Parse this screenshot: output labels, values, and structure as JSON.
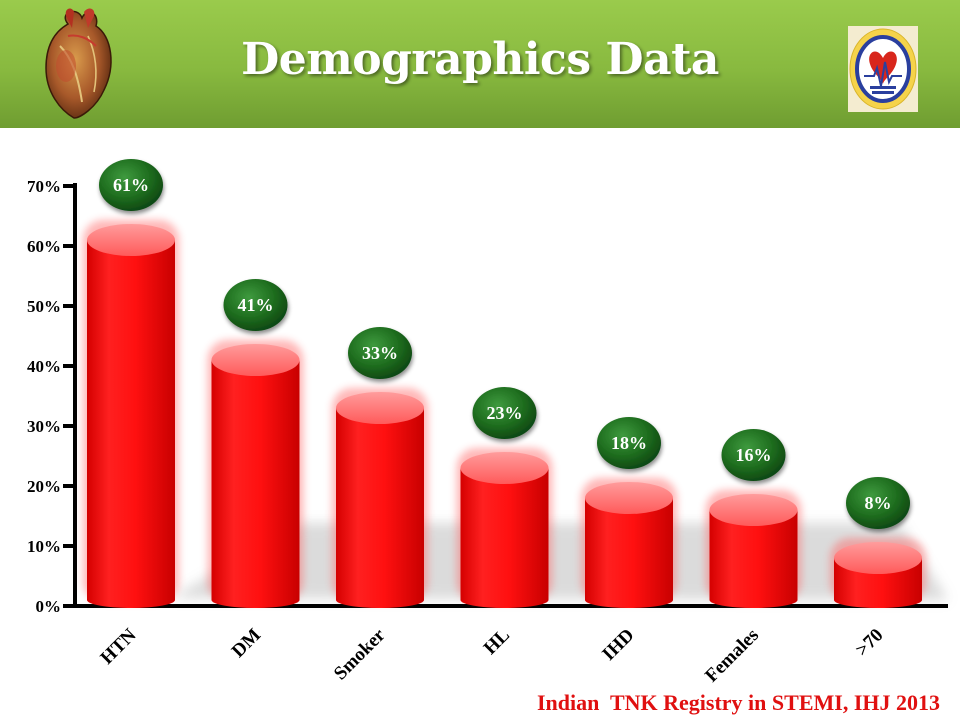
{
  "slide": {
    "title": "Demographics Data",
    "citation": "Indian  TNK Registry in STEMI, IHJ 2013"
  },
  "logos": {
    "left": "heart-icon",
    "right": "cardiological-society-of-india-seal",
    "seal_text": "CARDIOLOGICAL SOCIETY OF INDIA"
  },
  "colors": {
    "header": "#88b93f",
    "bar": "#ff0000",
    "badge": "#1e6b1e",
    "citation": "#e01010"
  },
  "chart_data": {
    "type": "bar",
    "categories": [
      "HTN",
      "DM",
      "Smoker",
      "HL",
      "IHD",
      "Females",
      ">70"
    ],
    "values": [
      61,
      41,
      33,
      23,
      18,
      16,
      8
    ],
    "data_labels": [
      "61%",
      "41%",
      "33%",
      "23%",
      "18%",
      "16%",
      "8%"
    ],
    "y_ticks": [
      "0%",
      "10%",
      "20%",
      "30%",
      "40%",
      "50%",
      "60%",
      "70%"
    ],
    "ylim": [
      0,
      70
    ],
    "grid": false,
    "legend": "none"
  }
}
